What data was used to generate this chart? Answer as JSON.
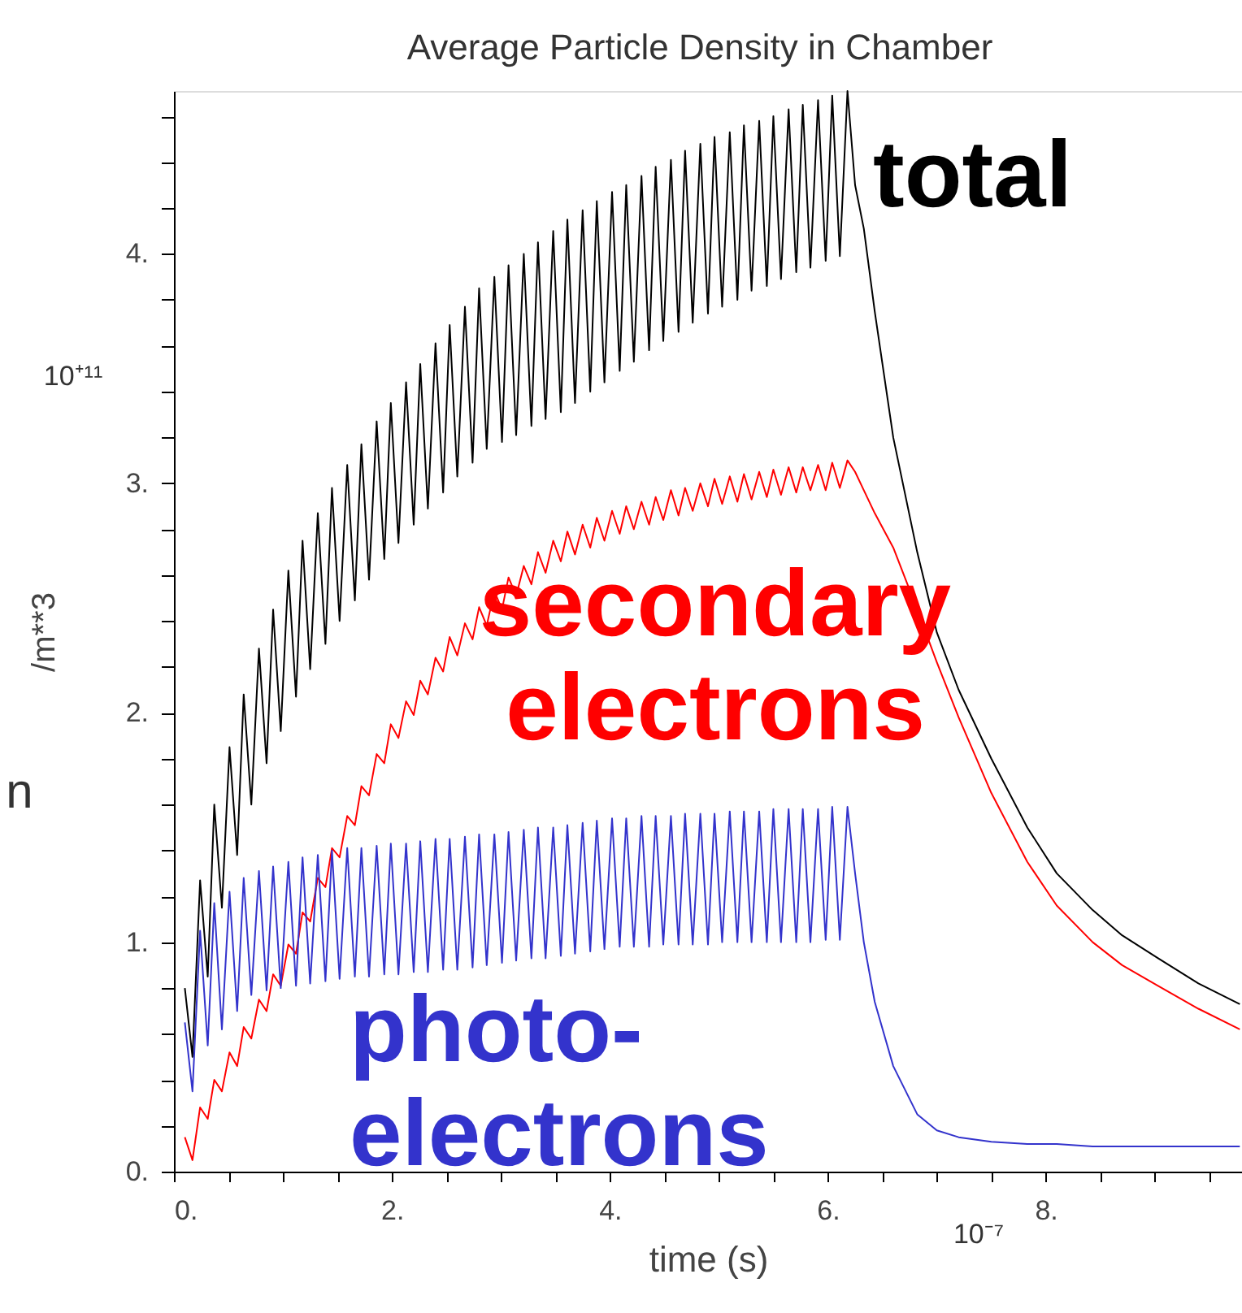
{
  "chart_data": {
    "type": "line",
    "title": "Average Particle Density in Chamber",
    "xlabel": "time (s)",
    "ylabel": "/m**3",
    "annotations": [
      "10⁺¹¹",
      "10⁻⁷",
      "n"
    ],
    "xlim": [
      0,
      9.8
    ],
    "ylim": [
      0,
      4.71
    ],
    "xticks": [
      {
        "value": 0,
        "label": "0."
      },
      {
        "value": 0.5,
        "label": null
      },
      {
        "value": 1,
        "label": null
      },
      {
        "value": 1.5,
        "label": null
      },
      {
        "value": 2,
        "label": "2."
      },
      {
        "value": 2.5,
        "label": null
      },
      {
        "value": 3,
        "label": null
      },
      {
        "value": 3.5,
        "label": null
      },
      {
        "value": 4,
        "label": "4."
      },
      {
        "value": 4.5,
        "label": null
      },
      {
        "value": 5,
        "label": null
      },
      {
        "value": 5.5,
        "label": null
      },
      {
        "value": 6,
        "label": "6."
      },
      {
        "value": 6.5,
        "label": null
      },
      {
        "value": 7,
        "label": null
      },
      {
        "value": 7.5,
        "label": null
      },
      {
        "value": 8,
        "label": "8."
      },
      {
        "value": 8.5,
        "label": null
      },
      {
        "value": 9,
        "label": null
      },
      {
        "value": 9.5,
        "label": null
      }
    ],
    "yticks": [
      {
        "value": 0,
        "label": "0."
      },
      {
        "value": 0.2,
        "label": null
      },
      {
        "value": 0.4,
        "label": null
      },
      {
        "value": 0.6,
        "label": null
      },
      {
        "value": 0.8,
        "label": null
      },
      {
        "value": 1,
        "label": "1."
      },
      {
        "value": 1.2,
        "label": null
      },
      {
        "value": 1.4,
        "label": null
      },
      {
        "value": 1.6,
        "label": null
      },
      {
        "value": 1.8,
        "label": null
      },
      {
        "value": 2,
        "label": "2."
      },
      {
        "value": 2.2,
        "label": null
      },
      {
        "value": 2.4,
        "label": null
      },
      {
        "value": 2.6,
        "label": null
      },
      {
        "value": 2.8,
        "label": null
      },
      {
        "value": 3,
        "label": "3."
      },
      {
        "value": 3.2,
        "label": null
      },
      {
        "value": 3.4,
        "label": null
      },
      {
        "value": 3.6,
        "label": null
      },
      {
        "value": 3.8,
        "label": null
      },
      {
        "value": 4,
        "label": "4."
      },
      {
        "value": 4.2,
        "label": null
      },
      {
        "value": 4.4,
        "label": null
      },
      {
        "value": 4.6,
        "label": null
      }
    ],
    "grid": false,
    "legend": false,
    "marker": "none",
    "line_style": "solid",
    "x": [
      0.1,
      0.17,
      0.24,
      0.31,
      0.37,
      0.44,
      0.51,
      0.58,
      0.64,
      0.71,
      0.78,
      0.85,
      0.91,
      0.98,
      1.05,
      1.12,
      1.18,
      1.25,
      1.32,
      1.39,
      1.45,
      1.52,
      1.59,
      1.66,
      1.72,
      1.79,
      1.86,
      1.93,
      1.99,
      2.06,
      2.13,
      2.2,
      2.26,
      2.33,
      2.4,
      2.47,
      2.53,
      2.6,
      2.67,
      2.74,
      2.8,
      2.87,
      2.94,
      3.01,
      3.07,
      3.14,
      3.21,
      3.28,
      3.34,
      3.41,
      3.48,
      3.55,
      3.61,
      3.68,
      3.75,
      3.82,
      3.88,
      3.95,
      4.02,
      4.09,
      4.15,
      4.22,
      4.29,
      4.36,
      4.42,
      4.49,
      4.56,
      4.63,
      4.69,
      4.76,
      4.83,
      4.9,
      4.96,
      5.03,
      5.1,
      5.17,
      5.23,
      5.3,
      5.37,
      5.44,
      5.5,
      5.57,
      5.64,
      5.71,
      5.77,
      5.84,
      5.91,
      5.98,
      6.04,
      6.11,
      6.18,
      6.25,
      6.33,
      6.43,
      6.6,
      6.82,
      7.0,
      7.2,
      7.5,
      7.83,
      8.1,
      8.43,
      8.7,
      9.03,
      9.4,
      9.78
    ],
    "series": [
      {
        "name": "total",
        "color": "#000000",
        "values": [
          0.8,
          0.5,
          1.27,
          0.85,
          1.6,
          1.15,
          1.85,
          1.38,
          2.08,
          1.6,
          2.28,
          1.78,
          2.45,
          1.92,
          2.62,
          2.07,
          2.75,
          2.19,
          2.87,
          2.3,
          2.98,
          2.4,
          3.08,
          2.49,
          3.17,
          2.58,
          3.27,
          2.67,
          3.35,
          2.74,
          3.44,
          2.82,
          3.52,
          2.89,
          3.61,
          2.96,
          3.69,
          3.03,
          3.77,
          3.09,
          3.85,
          3.15,
          3.9,
          3.18,
          3.95,
          3.21,
          4.0,
          3.25,
          4.05,
          3.28,
          4.1,
          3.31,
          4.15,
          3.35,
          4.19,
          3.4,
          4.23,
          3.44,
          4.27,
          3.49,
          4.3,
          3.53,
          4.34,
          3.58,
          4.38,
          3.62,
          4.41,
          3.66,
          4.45,
          3.7,
          4.48,
          3.74,
          4.51,
          3.77,
          4.53,
          3.8,
          4.56,
          3.84,
          4.58,
          3.86,
          4.6,
          3.89,
          4.63,
          3.92,
          4.65,
          3.94,
          4.67,
          3.97,
          4.69,
          3.99,
          4.71,
          4.3,
          4.11,
          3.75,
          3.2,
          2.7,
          2.35,
          2.1,
          1.8,
          1.5,
          1.3,
          1.14,
          1.03,
          0.93,
          0.82,
          0.73
        ]
      },
      {
        "name": "secondary electrons",
        "color": "#ff0000",
        "values": [
          0.15,
          0.05,
          0.28,
          0.23,
          0.4,
          0.35,
          0.52,
          0.46,
          0.63,
          0.58,
          0.75,
          0.7,
          0.86,
          0.81,
          0.99,
          0.95,
          1.13,
          1.09,
          1.28,
          1.24,
          1.41,
          1.37,
          1.55,
          1.51,
          1.68,
          1.64,
          1.82,
          1.78,
          1.95,
          1.89,
          2.05,
          1.99,
          2.14,
          2.08,
          2.24,
          2.18,
          2.33,
          2.25,
          2.39,
          2.32,
          2.46,
          2.38,
          2.53,
          2.45,
          2.59,
          2.51,
          2.64,
          2.56,
          2.7,
          2.61,
          2.75,
          2.66,
          2.79,
          2.69,
          2.82,
          2.72,
          2.85,
          2.75,
          2.88,
          2.78,
          2.9,
          2.8,
          2.92,
          2.82,
          2.94,
          2.84,
          2.97,
          2.86,
          2.98,
          2.88,
          3.0,
          2.9,
          3.02,
          2.91,
          3.03,
          2.92,
          3.04,
          2.93,
          3.05,
          2.94,
          3.06,
          2.95,
          3.07,
          2.96,
          3.07,
          2.97,
          3.08,
          2.97,
          3.09,
          2.98,
          3.1,
          3.05,
          2.97,
          2.87,
          2.72,
          2.45,
          2.22,
          1.98,
          1.65,
          1.35,
          1.16,
          1.0,
          0.9,
          0.81,
          0.71,
          0.62
        ]
      },
      {
        "name": "photo-electrons",
        "color": "#3333cc",
        "values": [
          0.65,
          0.35,
          1.05,
          0.55,
          1.17,
          0.62,
          1.22,
          0.7,
          1.28,
          0.77,
          1.31,
          0.79,
          1.33,
          0.8,
          1.35,
          0.81,
          1.37,
          0.82,
          1.38,
          0.83,
          1.4,
          0.84,
          1.41,
          0.85,
          1.41,
          0.85,
          1.42,
          0.86,
          1.43,
          0.86,
          1.43,
          0.87,
          1.44,
          0.87,
          1.45,
          0.88,
          1.45,
          0.88,
          1.46,
          0.89,
          1.47,
          0.9,
          1.47,
          0.91,
          1.48,
          0.92,
          1.49,
          0.93,
          1.5,
          0.93,
          1.5,
          0.94,
          1.51,
          0.95,
          1.52,
          0.96,
          1.53,
          0.97,
          1.54,
          0.98,
          1.54,
          0.98,
          1.55,
          0.98,
          1.55,
          0.99,
          1.55,
          0.99,
          1.56,
          0.99,
          1.56,
          0.99,
          1.56,
          1.0,
          1.57,
          1.0,
          1.57,
          1.0,
          1.57,
          1.0,
          1.58,
          1.0,
          1.58,
          1.0,
          1.58,
          1.0,
          1.58,
          1.01,
          1.59,
          1.01,
          1.59,
          1.3,
          1.0,
          0.74,
          0.46,
          0.25,
          0.18,
          0.15,
          0.13,
          0.12,
          0.12,
          0.11,
          0.11,
          0.11,
          0.11,
          0.11
        ]
      }
    ]
  }
}
